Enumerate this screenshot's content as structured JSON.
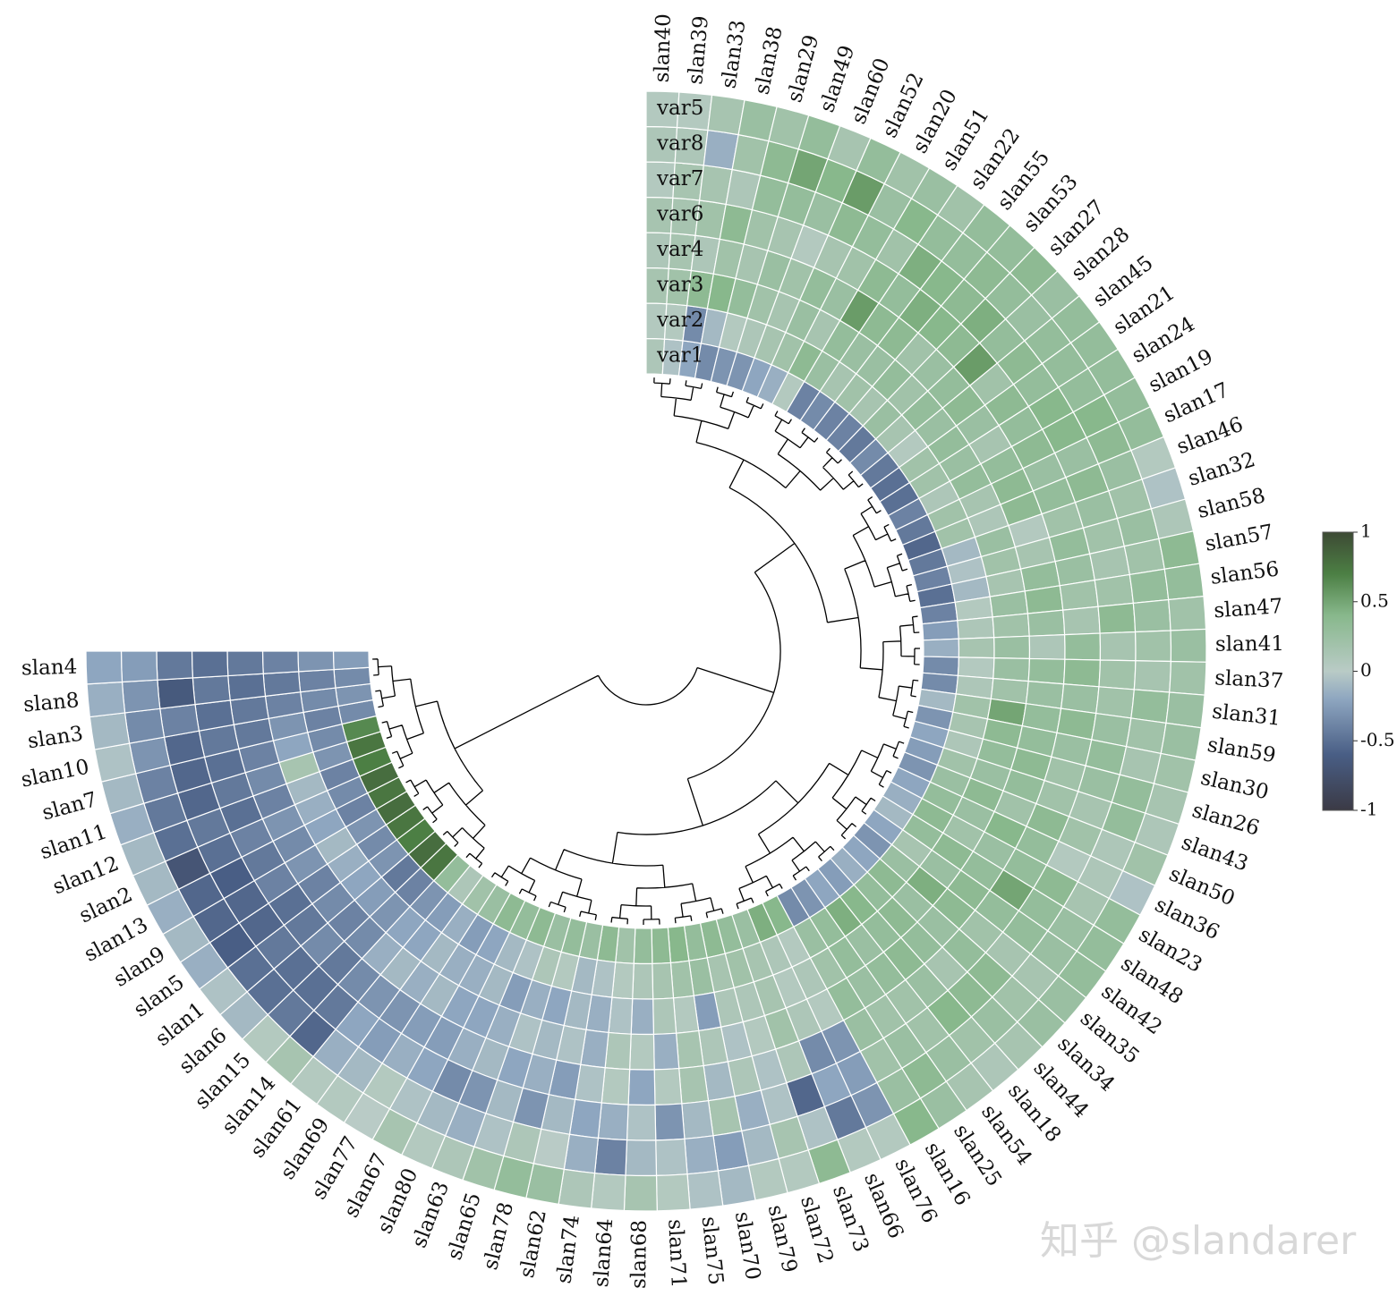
{
  "chart_data": {
    "type": "heatmap",
    "layout": "circular",
    "leaves": [
      "slan40",
      "slan39",
      "slan33",
      "slan38",
      "slan29",
      "slan49",
      "slan60",
      "slan52",
      "slan20",
      "slan51",
      "slan22",
      "slan55",
      "slan53",
      "slan27",
      "slan28",
      "slan45",
      "slan21",
      "slan24",
      "slan19",
      "slan17",
      "slan46",
      "slan32",
      "slan58",
      "slan57",
      "slan56",
      "slan47",
      "slan41",
      "slan37",
      "slan31",
      "slan59",
      "slan30",
      "slan26",
      "slan43",
      "slan50",
      "slan36",
      "slan23",
      "slan48",
      "slan42",
      "slan35",
      "slan34",
      "slan44",
      "slan18",
      "slan54",
      "slan25",
      "slan16",
      "slan76",
      "slan66",
      "slan73",
      "slan72",
      "slan79",
      "slan70",
      "slan75",
      "slan71",
      "slan68",
      "slan64",
      "slan74",
      "slan62",
      "slan78",
      "slan65",
      "slan63",
      "slan80",
      "slan67",
      "slan77",
      "slan69",
      "slan61",
      "slan14",
      "slan15",
      "slan6",
      "slan1",
      "slan5",
      "slan9",
      "slan13",
      "slan2",
      "slan12",
      "slan11",
      "slan7",
      "slan10",
      "slan3",
      "slan8",
      "slan4"
    ],
    "variables": [
      "var1",
      "var2",
      "var3",
      "var4",
      "var6",
      "var7",
      "var8",
      "var5"
    ],
    "values": [
      [
        0.1,
        0.05,
        0.15,
        0.1,
        0.15,
        0.05,
        0.1,
        0.05
      ],
      [
        -0.05,
        0.05,
        0.2,
        0.15,
        0.15,
        0.15,
        0.1,
        0.05
      ],
      [
        -0.2,
        -0.35,
        0.35,
        0.1,
        0.2,
        0.15,
        -0.15,
        0.15
      ],
      [
        -0.35,
        -0.1,
        0.4,
        0.2,
        0.35,
        0.1,
        0.2,
        0.25
      ],
      [
        -0.3,
        0.05,
        0.3,
        0.15,
        0.2,
        0.3,
        0.35,
        0.2
      ],
      [
        -0.3,
        0.1,
        0.2,
        0.25,
        0.15,
        0.3,
        0.5,
        0.3
      ],
      [
        -0.2,
        0.15,
        0.15,
        0.2,
        0.05,
        0.25,
        0.4,
        0.15
      ],
      [
        -0.15,
        0.2,
        0.25,
        0.3,
        0.15,
        0.35,
        0.55,
        0.3
      ],
      [
        0.05,
        0.35,
        0.15,
        0.25,
        0.2,
        0.3,
        0.25,
        0.2
      ],
      [
        -0.4,
        0.25,
        0.3,
        0.55,
        0.35,
        0.2,
        0.4,
        0.25
      ],
      [
        -0.35,
        0.15,
        0.25,
        0.35,
        0.3,
        0.45,
        0.3,
        0.2
      ],
      [
        -0.4,
        0.2,
        0.25,
        0.35,
        0.45,
        0.4,
        0.3,
        0.3
      ],
      [
        -0.4,
        0.15,
        0.3,
        0.2,
        0.4,
        0.35,
        0.35,
        0.3
      ],
      [
        -0.45,
        0.25,
        0.2,
        0.25,
        0.35,
        0.45,
        0.3,
        0.35
      ],
      [
        -0.35,
        0.15,
        0.3,
        0.3,
        0.55,
        0.3,
        0.25,
        0.25
      ],
      [
        -0.45,
        0.05,
        0.25,
        0.35,
        0.2,
        0.35,
        0.3,
        0.3
      ],
      [
        -0.5,
        0.2,
        0.3,
        0.25,
        0.35,
        0.3,
        0.3,
        0.3
      ],
      [
        -0.5,
        0.2,
        0.25,
        0.15,
        0.3,
        0.4,
        0.3,
        0.3
      ],
      [
        -0.4,
        0.1,
        0.3,
        0.3,
        0.35,
        0.4,
        0.4,
        0.3
      ],
      [
        -0.45,
        0.2,
        0.15,
        0.35,
        0.25,
        0.25,
        0.35,
        0.3
      ],
      [
        -0.55,
        0.2,
        0.1,
        0.35,
        0.3,
        0.35,
        0.25,
        0.05
      ],
      [
        -0.45,
        -0.1,
        0.25,
        0.05,
        0.2,
        0.25,
        0.2,
        -0.05
      ],
      [
        -0.4,
        -0.05,
        0.2,
        0.15,
        0.3,
        0.2,
        0.25,
        0.1
      ],
      [
        -0.5,
        -0.1,
        0.15,
        0.3,
        0.25,
        0.15,
        0.2,
        0.35
      ],
      [
        -0.4,
        0.05,
        0.25,
        0.35,
        0.2,
        0.2,
        0.3,
        0.3
      ],
      [
        -0.25,
        0.1,
        0.2,
        0.25,
        0.15,
        0.35,
        0.25,
        0.2
      ],
      [
        -0.15,
        0.15,
        0.25,
        0.1,
        0.3,
        0.15,
        0.2,
        0.25
      ],
      [
        -0.35,
        0.05,
        0.25,
        0.3,
        0.35,
        0.2,
        0.15,
        0.2
      ],
      [
        -0.35,
        0.1,
        0.2,
        0.25,
        0.25,
        0.2,
        0.3,
        0.25
      ],
      [
        -0.1,
        0.2,
        0.5,
        0.3,
        0.35,
        0.25,
        0.2,
        0.25
      ],
      [
        -0.3,
        0.15,
        0.35,
        0.3,
        0.25,
        0.3,
        0.15,
        0.2
      ],
      [
        -0.2,
        0.1,
        0.3,
        0.35,
        0.2,
        0.25,
        0.3,
        0.15
      ],
      [
        -0.25,
        0.2,
        0.25,
        0.3,
        0.2,
        0.15,
        0.3,
        0.1
      ],
      [
        -0.3,
        0.25,
        0.35,
        0.2,
        0.35,
        0.2,
        0.1,
        0.2
      ],
      [
        -0.2,
        0.3,
        0.25,
        0.4,
        0.3,
        0.05,
        0.1,
        -0.05
      ],
      [
        -0.15,
        0.35,
        0.2,
        0.25,
        0.3,
        0.35,
        0.15,
        0.3
      ],
      [
        -0.1,
        0.3,
        0.35,
        0.3,
        0.5,
        0.3,
        0.25,
        0.3
      ],
      [
        -0.2,
        0.15,
        0.25,
        0.35,
        0.3,
        0.3,
        0.25,
        0.3
      ],
      [
        -0.3,
        0.25,
        0.45,
        0.35,
        0.2,
        0.15,
        0.15,
        0.25
      ],
      [
        -0.2,
        0.35,
        0.25,
        0.25,
        0.3,
        0.35,
        0.2,
        0.25
      ],
      [
        -0.15,
        0.3,
        0.35,
        0.3,
        0.15,
        0.35,
        0.25,
        0.15
      ],
      [
        -0.25,
        0.4,
        0.3,
        0.35,
        0.25,
        0.4,
        0.2,
        0.1
      ],
      [
        -0.2,
        0.45,
        0.25,
        0.3,
        0.2,
        0.2,
        0.25,
        0.15
      ],
      [
        -0.3,
        0.3,
        0.3,
        0.25,
        0.2,
        0.25,
        0.35,
        0.25
      ],
      [
        -0.35,
        0.25,
        0.2,
        0.3,
        0.25,
        0.2,
        0.25,
        0.4
      ],
      [
        0.4,
        0.05,
        0.1,
        0.05,
        -0.3,
        -0.25,
        -0.3,
        0.05
      ],
      [
        0.45,
        0.1,
        0.05,
        0.1,
        -0.35,
        -0.2,
        -0.45,
        0.05
      ],
      [
        0.25,
        0.15,
        0.15,
        0.2,
        0.1,
        -0.55,
        -0.05,
        0.35
      ],
      [
        0.3,
        0.2,
        0.1,
        0.05,
        -0.05,
        -0.05,
        0.15,
        0.05
      ],
      [
        0.35,
        0.15,
        0.1,
        -0.05,
        0.1,
        -0.15,
        -0.1,
        0.05
      ],
      [
        0.3,
        0.25,
        -0.25,
        0.1,
        -0.1,
        0.15,
        -0.25,
        -0.1
      ],
      [
        0.4,
        0.2,
        0.05,
        0.15,
        0.15,
        -0.1,
        -0.15,
        -0.05
      ],
      [
        0.35,
        0.15,
        0.1,
        -0.15,
        0.05,
        -0.3,
        -0.05,
        0.05
      ],
      [
        0.3,
        0.1,
        -0.15,
        0.05,
        -0.2,
        -0.05,
        -0.1,
        0.15
      ],
      [
        0.2,
        0.05,
        -0.05,
        0.1,
        0.05,
        -0.15,
        -0.4,
        0.05
      ],
      [
        0.35,
        -0.05,
        -0.15,
        -0.15,
        -0.05,
        -0.2,
        -0.15,
        0.1
      ],
      [
        0.25,
        -0.1,
        -0.1,
        -0.05,
        -0.25,
        -0.1,
        0.0,
        0.25
      ],
      [
        0.3,
        0.05,
        -0.2,
        -0.1,
        -0.15,
        -0.3,
        0.1,
        0.3
      ],
      [
        0.25,
        0.1,
        -0.15,
        -0.05,
        -0.2,
        -0.1,
        -0.05,
        0.2
      ],
      [
        0.35,
        -0.05,
        -0.25,
        -0.15,
        -0.1,
        -0.3,
        -0.15,
        0.1
      ],
      [
        0.3,
        -0.1,
        -0.1,
        -0.2,
        -0.15,
        -0.35,
        -0.1,
        0.05
      ],
      [
        0.35,
        -0.2,
        -0.15,
        -0.2,
        -0.25,
        -0.2,
        -0.05,
        0.15
      ],
      [
        0.25,
        -0.25,
        -0.15,
        -0.1,
        -0.25,
        -0.15,
        0.05,
        0.0
      ],
      [
        0.2,
        -0.15,
        -0.1,
        -0.15,
        -0.3,
        -0.25,
        -0.1,
        0.05
      ],
      [
        0.1,
        -0.25,
        -0.2,
        -0.1,
        -0.3,
        -0.2,
        -0.15,
        0.05
      ],
      [
        0.3,
        -0.3,
        -0.2,
        -0.15,
        -0.35,
        -0.45,
        -0.55,
        0.15
      ],
      [
        0.75,
        -0.4,
        -0.3,
        -0.35,
        -0.45,
        -0.5,
        -0.45,
        0.05
      ],
      [
        0.8,
        -0.45,
        -0.25,
        -0.4,
        -0.35,
        -0.5,
        -0.5,
        -0.1
      ],
      [
        0.7,
        -0.3,
        -0.2,
        -0.35,
        -0.45,
        -0.45,
        -0.5,
        -0.05
      ],
      [
        0.75,
        -0.35,
        -0.15,
        -0.4,
        -0.5,
        -0.55,
        -0.6,
        -0.15
      ],
      [
        0.8,
        -0.3,
        -0.1,
        -0.3,
        -0.4,
        -0.55,
        -0.55,
        -0.1
      ],
      [
        0.75,
        -0.4,
        -0.2,
        -0.35,
        -0.45,
        -0.6,
        -0.55,
        -0.15
      ],
      [
        0.8,
        -0.35,
        -0.15,
        -0.3,
        -0.4,
        -0.5,
        -0.7,
        -0.1
      ],
      [
        0.7,
        -0.4,
        -0.1,
        -0.4,
        -0.5,
        -0.45,
        -0.5,
        -0.1
      ],
      [
        0.75,
        -0.3,
        0.15,
        -0.35,
        -0.45,
        -0.55,
        -0.45,
        -0.15
      ],
      [
        0.65,
        -0.35,
        -0.2,
        -0.4,
        -0.5,
        -0.55,
        -0.4,
        -0.1
      ],
      [
        -0.35,
        -0.4,
        -0.3,
        -0.45,
        -0.45,
        -0.55,
        -0.3,
        -0.05
      ],
      [
        -0.3,
        -0.35,
        -0.4,
        -0.45,
        -0.5,
        -0.4,
        -0.35,
        -0.1
      ],
      [
        -0.35,
        -0.4,
        -0.45,
        -0.5,
        -0.45,
        -0.65,
        -0.3,
        -0.15
      ],
      [
        -0.25,
        -0.3,
        -0.4,
        -0.45,
        -0.5,
        -0.45,
        -0.25,
        -0.2
      ]
    ],
    "colorbar": {
      "range": [
        -1,
        1
      ],
      "ticks": [
        "1",
        "0.5",
        "0",
        "-0.5",
        "-1"
      ]
    }
  },
  "watermark": "知乎 @slandarer",
  "colors": {
    "cmap_neg": [
      "#3b3a45",
      "#495e85",
      "#8ea6c0",
      "#b9cbc6"
    ],
    "cmap_pos": [
      "#b9cbc6",
      "#88b88c",
      "#4c7f44",
      "#3d4a34"
    ]
  }
}
